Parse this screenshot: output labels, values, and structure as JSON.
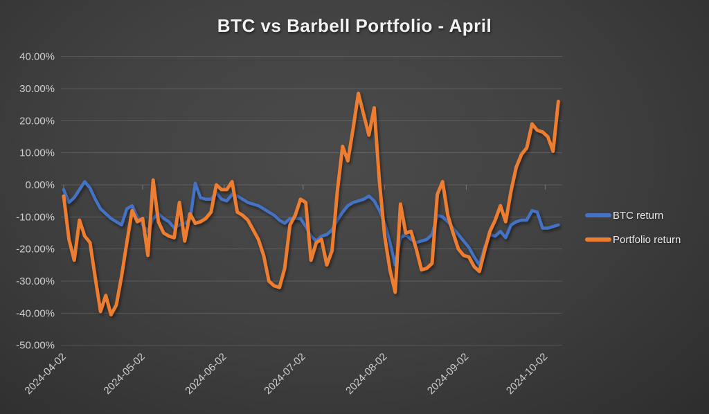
{
  "title": "BTC vs Barbell Portfolio - April",
  "colors": {
    "btc_line": "#4472C4",
    "portfolio_line": "#ED7D31",
    "gridline": "rgba(255,255,255,0.15)",
    "axis_text": "#cfcfcf",
    "title_text": "#f2f2f2"
  },
  "legend": {
    "items": [
      {
        "label": "BTC return",
        "color": "#4472C4"
      },
      {
        "label": "Portfolio return",
        "color": "#ED7D31"
      }
    ]
  },
  "chart_data": {
    "type": "line",
    "title": "BTC vs Barbell Portfolio - April",
    "xlabel": "",
    "ylabel": "",
    "values_unit": "percent",
    "ylim": [
      -50,
      40
    ],
    "grid": "horizontal",
    "legend_position": "right",
    "x_step_days": 2,
    "x_total_days": 188,
    "y_ticks": [
      "40.00%",
      "30.00%",
      "20.00%",
      "10.00%",
      "0.00%",
      "-10.00%",
      "-20.00%",
      "-30.00%",
      "-40.00%",
      "-50.00%"
    ],
    "y_tick_values": [
      40,
      30,
      20,
      10,
      0,
      -10,
      -20,
      -30,
      -40,
      -50
    ],
    "x_tick_labels": [
      "2024-04-02",
      "2024-05-02",
      "2024-06-02",
      "2024-07-02",
      "2024-08-02",
      "2024-09-02",
      "2024-10-02"
    ],
    "x_tick_days": [
      0,
      30,
      61,
      91,
      122,
      153,
      183
    ],
    "dates": [
      "2024-04-02",
      "2024-04-04",
      "2024-04-06",
      "2024-04-08",
      "2024-04-10",
      "2024-04-12",
      "2024-04-14",
      "2024-04-16",
      "2024-04-18",
      "2024-04-20",
      "2024-04-22",
      "2024-04-24",
      "2024-04-26",
      "2024-04-28",
      "2024-04-30",
      "2024-05-02",
      "2024-05-04",
      "2024-05-06",
      "2024-05-08",
      "2024-05-10",
      "2024-05-12",
      "2024-05-14",
      "2024-05-16",
      "2024-05-18",
      "2024-05-20",
      "2024-05-22",
      "2024-05-24",
      "2024-05-26",
      "2024-05-28",
      "2024-05-30",
      "2024-06-01",
      "2024-06-03",
      "2024-06-05",
      "2024-06-07",
      "2024-06-09",
      "2024-06-11",
      "2024-06-13",
      "2024-06-15",
      "2024-06-17",
      "2024-06-19",
      "2024-06-21",
      "2024-06-23",
      "2024-06-25",
      "2024-06-27",
      "2024-06-29",
      "2024-07-01",
      "2024-07-03",
      "2024-07-05",
      "2024-07-07",
      "2024-07-09",
      "2024-07-11",
      "2024-07-13",
      "2024-07-15",
      "2024-07-17",
      "2024-07-19",
      "2024-07-21",
      "2024-07-23",
      "2024-07-25",
      "2024-07-27",
      "2024-07-29",
      "2024-07-31",
      "2024-08-02",
      "2024-08-04",
      "2024-08-06",
      "2024-08-08",
      "2024-08-10",
      "2024-08-12",
      "2024-08-14",
      "2024-08-16",
      "2024-08-18",
      "2024-08-20",
      "2024-08-22",
      "2024-08-24",
      "2024-08-26",
      "2024-08-28",
      "2024-08-30",
      "2024-09-01",
      "2024-09-03",
      "2024-09-05",
      "2024-09-07",
      "2024-09-09",
      "2024-09-11",
      "2024-09-13",
      "2024-09-15",
      "2024-09-17",
      "2024-09-19",
      "2024-09-21",
      "2024-09-23",
      "2024-09-25",
      "2024-09-27",
      "2024-09-29",
      "2024-10-01",
      "2024-10-03",
      "2024-10-05",
      "2024-10-07"
    ],
    "series": [
      {
        "name": "BTC return",
        "color": "#4472C4",
        "stroke_width": 4.5,
        "values": [
          -1.5,
          -5.5,
          -4,
          -1.5,
          1,
          -1,
          -4.5,
          -7.5,
          -9,
          -10.5,
          -11.5,
          -12.5,
          -7.5,
          -6.5,
          -10,
          -12.5,
          -14.5,
          -10.5,
          -9,
          -10.5,
          -11.5,
          -13.5,
          -12.5,
          -12,
          -11,
          0.5,
          -4,
          -4.5,
          -4.5,
          -2.5,
          -4.5,
          -5,
          -3,
          -3.5,
          -4.5,
          -5.5,
          -6,
          -6.5,
          -7.5,
          -8.5,
          -9.5,
          -11,
          -12,
          -10.5,
          -10.5,
          -10.5,
          -13,
          -16,
          -17.5,
          -16,
          -15.5,
          -14,
          -11,
          -8.5,
          -6.5,
          -5.5,
          -5,
          -4.5,
          -3.5,
          -5,
          -8,
          -12,
          -18,
          -25,
          -16.5,
          -15.5,
          -17,
          -18,
          -17.5,
          -17,
          -15.5,
          -9.5,
          -10,
          -11.5,
          -13.5,
          -15.5,
          -17.5,
          -19.5,
          -22.5,
          -25,
          -19.5,
          -15.5,
          -16,
          -14.5,
          -16.5,
          -12.5,
          -11.5,
          -11,
          -11,
          -8,
          -8.5,
          -13.5,
          -13.5,
          -13,
          -12.5
        ]
      },
      {
        "name": "Portfolio return",
        "color": "#ED7D31",
        "stroke_width": 5,
        "values": [
          -3.5,
          -17,
          -23.5,
          -11,
          -16,
          -18,
          -29,
          -39.5,
          -34.5,
          -40.5,
          -37.5,
          -28.5,
          -18,
          -8,
          -11.5,
          -10.5,
          -22,
          1.5,
          -11.5,
          -15,
          -16,
          -16.5,
          -5.5,
          -17.5,
          -9,
          -12,
          -11.5,
          -10.5,
          -8.5,
          0,
          -1.5,
          -1.5,
          1,
          -8.5,
          -9.5,
          -11,
          -14,
          -17,
          -22,
          -30,
          -31.5,
          -32,
          -26,
          -12.5,
          -9.5,
          -4.5,
          -5.5,
          -23.5,
          -18,
          -17,
          -25,
          -20.5,
          -2,
          12,
          7.5,
          17.5,
          28.5,
          22,
          15.5,
          24,
          1,
          -16,
          -26.5,
          -33.5,
          -6,
          -15,
          -14.5,
          -20,
          -26.5,
          -26,
          -24.5,
          -3,
          1,
          -9.5,
          -15,
          -20,
          -22,
          -22.5,
          -25.5,
          -27,
          -20.5,
          -14.5,
          -11,
          -6.5,
          -11.5,
          -2,
          5.5,
          9.5,
          11.5,
          19,
          17,
          16.5,
          15,
          10.5,
          26
        ]
      }
    ]
  }
}
